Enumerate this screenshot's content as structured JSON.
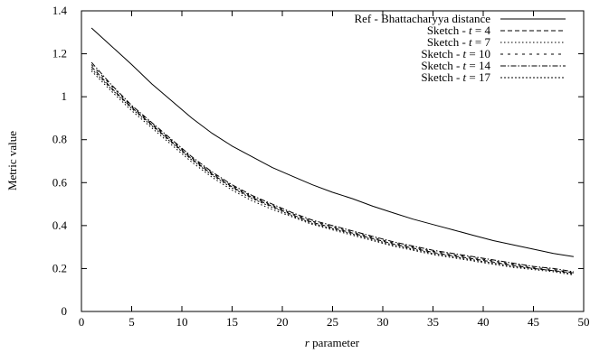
{
  "chart_data": {
    "type": "line",
    "title": "",
    "xlabel_prefix": "r",
    "xlabel_suffix": " parameter",
    "ylabel": "Metric value",
    "xlim": [
      0,
      50
    ],
    "ylim": [
      0,
      1.4
    ],
    "xticks": [
      "0",
      "5",
      "10",
      "15",
      "20",
      "25",
      "30",
      "35",
      "40",
      "45",
      "50"
    ],
    "yticks": [
      "0",
      "0.2",
      "0.4",
      "0.6",
      "0.8",
      "1",
      "1.2",
      "1.4"
    ],
    "grid": false,
    "legend_position": "top-right",
    "series": [
      {
        "legend_text": "Ref - Bhattacharyya distance",
        "legend_prefix": "",
        "legend_var": "",
        "legend_suffix": "",
        "style": "solid",
        "x": [
          1,
          3,
          5,
          7,
          9,
          11,
          13,
          15,
          17,
          19,
          21,
          23,
          25,
          27,
          29,
          31,
          33,
          35,
          37,
          39,
          41,
          43,
          45,
          47,
          49
        ],
        "y": [
          1.32,
          1.235,
          1.15,
          1.06,
          0.98,
          0.9,
          0.83,
          0.77,
          0.72,
          0.67,
          0.63,
          0.59,
          0.555,
          0.525,
          0.49,
          0.46,
          0.43,
          0.405,
          0.38,
          0.355,
          0.33,
          0.31,
          0.29,
          0.27,
          0.255
        ]
      },
      {
        "legend_text": "",
        "legend_prefix": "Sketch - ",
        "legend_var": "t",
        "legend_suffix": " = 4",
        "style": "dash",
        "x": [
          1,
          3,
          5,
          7,
          9,
          11,
          13,
          15,
          17,
          19,
          21,
          23,
          25,
          27,
          29,
          31,
          33,
          35,
          37,
          39,
          41,
          43,
          45,
          47,
          49
        ],
        "y": [
          1.14,
          1.04,
          0.95,
          0.87,
          0.79,
          0.71,
          0.64,
          0.58,
          0.53,
          0.49,
          0.45,
          0.415,
          0.39,
          0.365,
          0.34,
          0.315,
          0.295,
          0.275,
          0.26,
          0.245,
          0.23,
          0.215,
          0.2,
          0.19,
          0.18
        ]
      },
      {
        "legend_text": "",
        "legend_prefix": "Sketch - ",
        "legend_var": "t",
        "legend_suffix": " = 7",
        "style": "dot",
        "x": [
          1,
          3,
          5,
          7,
          9,
          11,
          13,
          15,
          17,
          19,
          21,
          23,
          25,
          27,
          29,
          31,
          33,
          35,
          37,
          39,
          41,
          43,
          45,
          47,
          49
        ],
        "y": [
          1.12,
          1.025,
          0.935,
          0.855,
          0.775,
          0.695,
          0.625,
          0.565,
          0.515,
          0.475,
          0.44,
          0.405,
          0.38,
          0.355,
          0.33,
          0.305,
          0.285,
          0.265,
          0.25,
          0.235,
          0.22,
          0.205,
          0.195,
          0.185,
          0.17
        ]
      },
      {
        "legend_text": "",
        "legend_prefix": "Sketch - ",
        "legend_var": "t",
        "legend_suffix": " = 10",
        "style": "dashsparse",
        "x": [
          1,
          3,
          5,
          7,
          9,
          11,
          13,
          15,
          17,
          19,
          21,
          23,
          25,
          27,
          29,
          31,
          33,
          35,
          37,
          39,
          41,
          43,
          45,
          47,
          49
        ],
        "y": [
          1.15,
          1.05,
          0.955,
          0.875,
          0.795,
          0.715,
          0.645,
          0.585,
          0.535,
          0.495,
          0.455,
          0.42,
          0.395,
          0.37,
          0.345,
          0.32,
          0.3,
          0.28,
          0.265,
          0.25,
          0.235,
          0.22,
          0.205,
          0.195,
          0.18
        ]
      },
      {
        "legend_text": "",
        "legend_prefix": "Sketch - ",
        "legend_var": "t",
        "legend_suffix": " = 14",
        "style": "dashdot",
        "x": [
          1,
          3,
          5,
          7,
          9,
          11,
          13,
          15,
          17,
          19,
          21,
          23,
          25,
          27,
          29,
          31,
          33,
          35,
          37,
          39,
          41,
          43,
          45,
          47,
          49
        ],
        "y": [
          1.16,
          1.055,
          0.96,
          0.88,
          0.8,
          0.72,
          0.65,
          0.59,
          0.54,
          0.5,
          0.46,
          0.425,
          0.4,
          0.375,
          0.35,
          0.325,
          0.305,
          0.285,
          0.27,
          0.255,
          0.24,
          0.225,
          0.21,
          0.2,
          0.185
        ]
      },
      {
        "legend_text": "",
        "legend_prefix": "Sketch - ",
        "legend_var": "t",
        "legend_suffix": " = 17",
        "style": "finedash",
        "x": [
          1,
          3,
          5,
          7,
          9,
          11,
          13,
          15,
          17,
          19,
          21,
          23,
          25,
          27,
          29,
          31,
          33,
          35,
          37,
          39,
          41,
          43,
          45,
          47,
          49
        ],
        "y": [
          1.13,
          1.035,
          0.945,
          0.865,
          0.785,
          0.705,
          0.635,
          0.575,
          0.525,
          0.485,
          0.445,
          0.41,
          0.385,
          0.36,
          0.335,
          0.31,
          0.29,
          0.27,
          0.255,
          0.24,
          0.225,
          0.21,
          0.2,
          0.19,
          0.175
        ]
      }
    ]
  }
}
